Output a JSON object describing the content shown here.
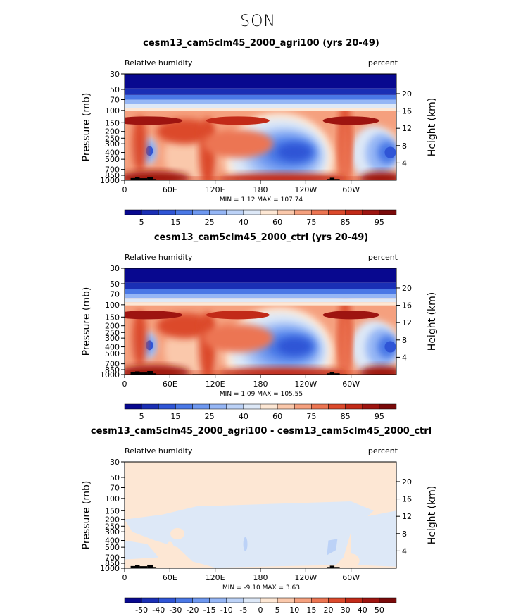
{
  "figure": {
    "title": "SON"
  },
  "chart_data": [
    {
      "type": "heatmap",
      "title": "cesm13_cam5clm45_2000_agri100 (yrs 20-49)",
      "left_label": "Relative humidity",
      "right_label": "percent",
      "ylabel": "Pressure (mb)",
      "ylabel_right": "Height (km)",
      "x_ticks": [
        "0",
        "60E",
        "120E",
        "180",
        "120W",
        "60W"
      ],
      "y_ticks": [
        "30",
        "50",
        "70",
        "100",
        "150",
        "200",
        "250",
        "300",
        "400",
        "500",
        "700",
        "850",
        "1000"
      ],
      "height_ticks": [
        "20",
        "16",
        "12",
        "8",
        "4"
      ],
      "min_max": "MIN =    1.12   MAX = 107.74",
      "stats": {
        "min": 1.12,
        "max": 107.74
      },
      "colorbar_labels": [
        "5",
        "15",
        "25",
        "40",
        "60",
        "75",
        "85",
        "95"
      ],
      "colorbar_levels": [
        5,
        10,
        15,
        20,
        25,
        30,
        40,
        50,
        60,
        70,
        75,
        80,
        85,
        90,
        95
      ],
      "colors": [
        "#08088f",
        "#1a2fb5",
        "#2f55d6",
        "#4a78e6",
        "#6e98f0",
        "#95b6f5",
        "#bcd2f7",
        "#dde8f7",
        "#fde7d4",
        "#fac8ab",
        "#f5a07e",
        "#ec7552",
        "#dc4a2c",
        "#c22a18",
        "#9e1410",
        "#7a0a0a"
      ],
      "y_range_mb": [
        1000,
        30
      ],
      "x_range_deg": [
        0,
        360
      ]
    },
    {
      "type": "heatmap",
      "title": "cesm13_cam5clm45_2000_ctrl (yrs 20-49)",
      "left_label": "Relative humidity",
      "right_label": "percent",
      "ylabel": "Pressure (mb)",
      "ylabel_right": "Height (km)",
      "x_ticks": [
        "0",
        "60E",
        "120E",
        "180",
        "120W",
        "60W"
      ],
      "y_ticks": [
        "30",
        "50",
        "70",
        "100",
        "150",
        "200",
        "250",
        "300",
        "400",
        "500",
        "700",
        "850",
        "1000"
      ],
      "height_ticks": [
        "20",
        "16",
        "12",
        "8",
        "4"
      ],
      "min_max": "MIN =    1.09   MAX = 105.55",
      "stats": {
        "min": 1.09,
        "max": 105.55
      },
      "colorbar_labels": [
        "5",
        "15",
        "25",
        "40",
        "60",
        "75",
        "85",
        "95"
      ],
      "colorbar_levels": [
        5,
        10,
        15,
        20,
        25,
        30,
        40,
        50,
        60,
        70,
        75,
        80,
        85,
        90,
        95
      ],
      "colors": [
        "#08088f",
        "#1a2fb5",
        "#2f55d6",
        "#4a78e6",
        "#6e98f0",
        "#95b6f5",
        "#bcd2f7",
        "#dde8f7",
        "#fde7d4",
        "#fac8ab",
        "#f5a07e",
        "#ec7552",
        "#dc4a2c",
        "#c22a18",
        "#9e1410",
        "#7a0a0a"
      ],
      "y_range_mb": [
        1000,
        30
      ],
      "x_range_deg": [
        0,
        360
      ]
    },
    {
      "type": "heatmap",
      "title": "cesm13_cam5clm45_2000_agri100 - cesm13_cam5clm45_2000_ctrl",
      "left_label": "Relative humidity",
      "right_label": "percent",
      "ylabel": "Pressure (mb)",
      "ylabel_right": "Height (km)",
      "x_ticks": [
        "0",
        "60E",
        "120E",
        "180",
        "120W",
        "60W"
      ],
      "y_ticks": [
        "30",
        "50",
        "70",
        "100",
        "150",
        "200",
        "250",
        "300",
        "400",
        "500",
        "700",
        "850",
        "1000"
      ],
      "height_ticks": [
        "20",
        "16",
        "12",
        "8",
        "4"
      ],
      "min_max": "MIN =   -9.10   MAX =    3.63",
      "stats": {
        "min": -9.1,
        "max": 3.63
      },
      "colorbar_labels": [
        "-50",
        "-40",
        "-30",
        "-20",
        "-15",
        "-10",
        "-5",
        "0",
        "5",
        "10",
        "15",
        "20",
        "30",
        "40",
        "50"
      ],
      "colorbar_levels": [
        -50,
        -40,
        -30,
        -20,
        -15,
        -10,
        -5,
        0,
        5,
        10,
        15,
        20,
        30,
        40,
        50
      ],
      "colors": [
        "#08088f",
        "#1a2fb5",
        "#2f55d6",
        "#4a78e6",
        "#6e98f0",
        "#95b6f5",
        "#bcd2f7",
        "#dde8f7",
        "#fde7d4",
        "#fac8ab",
        "#f5a07e",
        "#ec7552",
        "#dc4a2c",
        "#c22a18",
        "#9e1410",
        "#7a0a0a"
      ],
      "y_range_mb": [
        1000,
        30
      ],
      "x_range_deg": [
        0,
        360
      ]
    }
  ]
}
